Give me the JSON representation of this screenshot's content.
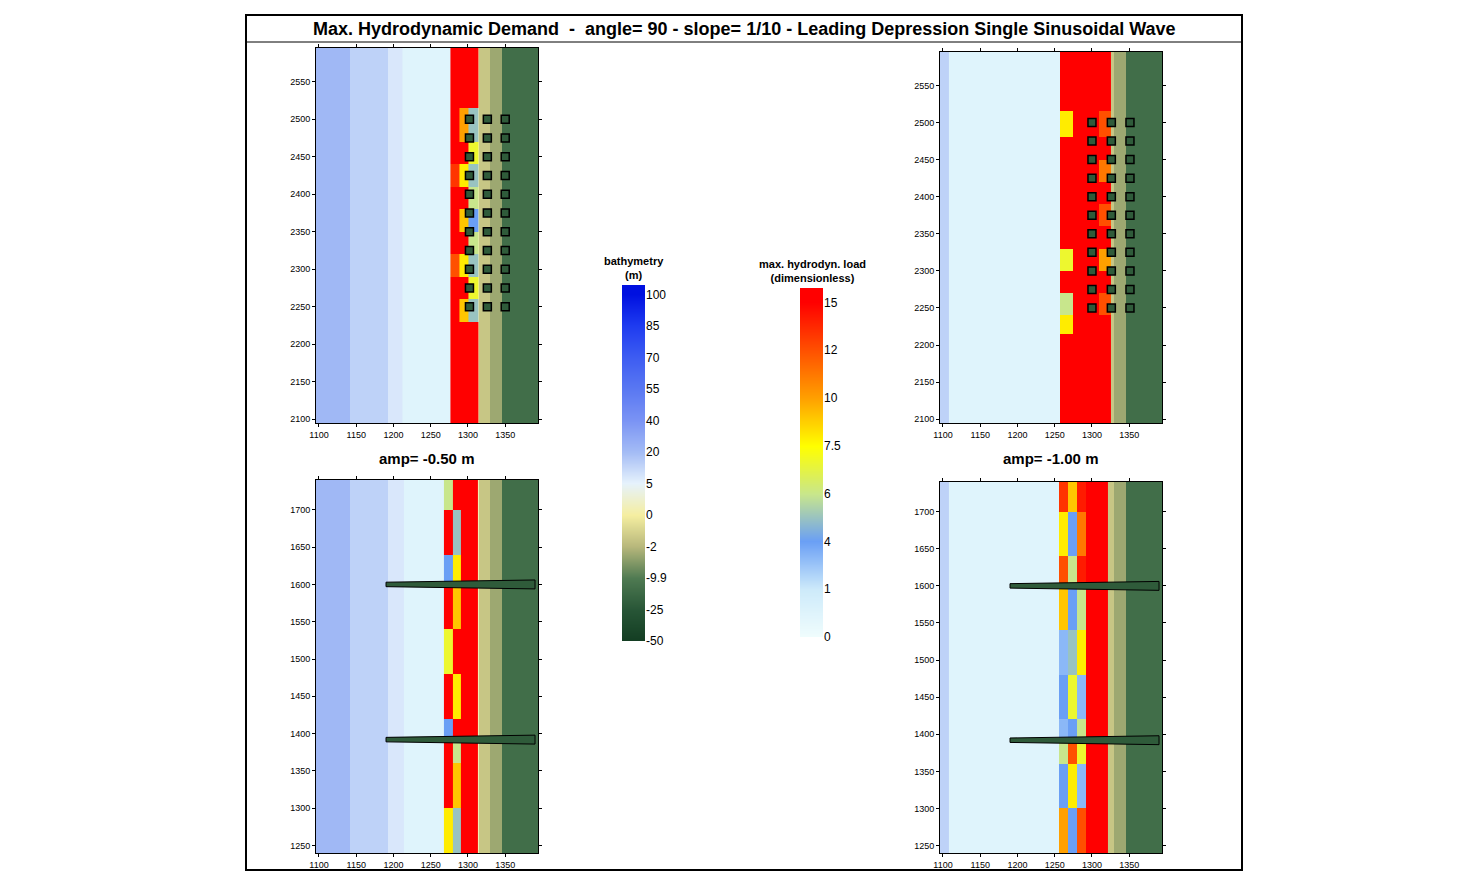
{
  "title": "Max. Hydrodynamic Demand  -  angle= 90 - slope= 1/10 - Leading Depression Single Sinusoidal Wave",
  "column_labels": [
    "amp= -0.50 m",
    "amp= -1.00 m"
  ],
  "bathymetry_colorbar": {
    "title": "bathymetry (m)",
    "ticks": [
      100,
      85,
      70,
      55,
      40,
      20,
      5,
      0,
      -2,
      -9.9,
      -25,
      -50
    ],
    "colors": [
      "#0010e0",
      "#1f3cf0",
      "#3d5cf2",
      "#5a78f2",
      "#7a93f4",
      "#a4bcf5",
      "#e6f2fc",
      "#f5eea0",
      "#b8b87c",
      "#4f7a52",
      "#275536",
      "#133d22"
    ]
  },
  "load_colorbar": {
    "title": "max. hydrodyn. load (dimensionless)",
    "ticks": [
      15,
      12,
      10,
      7.5,
      6,
      4,
      1,
      0
    ],
    "colors": [
      "#ff0000",
      "#ff5000",
      "#ffa000",
      "#ffff00",
      "#c8e68c",
      "#6a9ff5",
      "#cdeafa",
      "#f0fdfd"
    ]
  },
  "chart_data": [
    {
      "type": "heatmap",
      "row": 0,
      "column": 0,
      "xlim": [
        1096,
        1394
      ],
      "ylim": [
        2095,
        2595
      ],
      "xticks": [
        1100,
        1150,
        1200,
        1250,
        1300,
        1350
      ],
      "yticks": [
        2100,
        2150,
        2200,
        2250,
        2300,
        2350,
        2400,
        2450,
        2500,
        2550
      ],
      "bathymetry": {
        "x_edges": [
          1096,
          1142,
          1192,
          1214,
          1276,
          1315,
          1330,
          1345,
          1394
        ],
        "depth": [
          22,
          14,
          8,
          3,
          1,
          -1.5,
          -4,
          -15
        ]
      },
      "load": {
        "x_edges": [
          1212,
          1276,
          1288,
          1300,
          1314
        ],
        "y_edges": [
          2095,
          2230,
          2260,
          2290,
          2320,
          2350,
          2380,
          2410,
          2440,
          2470,
          2515,
          2595
        ],
        "values": [
          [
            0.5,
            15,
            15,
            15
          ],
          [
            0.5,
            15,
            9,
            5
          ],
          [
            0.5,
            15,
            15,
            7
          ],
          [
            0.5,
            12,
            8,
            5
          ],
          [
            0.5,
            15,
            15,
            6
          ],
          [
            0.5,
            15,
            9,
            4
          ],
          [
            0.5,
            15,
            15,
            6
          ],
          [
            0.5,
            13,
            8,
            5
          ],
          [
            0.5,
            15,
            15,
            7
          ],
          [
            0.5,
            15,
            10,
            5
          ],
          [
            0.5,
            15,
            15,
            15
          ]
        ]
      },
      "buildings": {
        "x": [
          1302,
          1326,
          1350
        ],
        "y": [
          2250,
          2275,
          2300,
          2325,
          2350,
          2375,
          2400,
          2425,
          2450,
          2475,
          2500
        ]
      }
    },
    {
      "type": "heatmap",
      "row": 0,
      "column": 1,
      "xlim": [
        1096,
        1394
      ],
      "ylim": [
        2095,
        2595
      ],
      "xticks": [
        1100,
        1150,
        1200,
        1250,
        1300,
        1350
      ],
      "yticks": [
        2100,
        2150,
        2200,
        2250,
        2300,
        2350,
        2400,
        2450,
        2500,
        2550
      ],
      "bathymetry": {
        "x_edges": [
          1096,
          1108,
          1260,
          1315,
          1330,
          1345,
          1394
        ],
        "depth": [
          14,
          3,
          1,
          -1.5,
          -4,
          -15
        ]
      },
      "load": {
        "x_edges": [
          1108,
          1257,
          1275,
          1290,
          1310,
          1325
        ],
        "y_edges": [
          2095,
          2215,
          2240,
          2270,
          2300,
          2330,
          2360,
          2390,
          2420,
          2450,
          2480,
          2515,
          2595
        ],
        "values": [
          [
            0.5,
            15,
            15,
            15,
            15
          ],
          [
            0.5,
            8,
            15,
            15,
            15
          ],
          [
            0.5,
            6,
            15,
            15,
            12
          ],
          [
            0.5,
            15,
            15,
            15,
            15
          ],
          [
            0.5,
            7,
            15,
            15,
            10
          ],
          [
            0.5,
            15,
            15,
            15,
            15
          ],
          [
            0.5,
            15,
            15,
            15,
            12
          ],
          [
            0.5,
            15,
            15,
            15,
            15
          ],
          [
            0.5,
            15,
            15,
            15,
            11
          ],
          [
            0.5,
            15,
            15,
            15,
            15
          ],
          [
            0.5,
            8,
            15,
            15,
            12
          ],
          [
            0.5,
            15,
            15,
            15,
            15
          ]
        ]
      },
      "buildings": {
        "x": [
          1300,
          1326,
          1351
        ],
        "y": [
          2250,
          2275,
          2300,
          2325,
          2350,
          2375,
          2400,
          2425,
          2450,
          2475,
          2500
        ]
      }
    },
    {
      "type": "heatmap",
      "row": 1,
      "column": 0,
      "xlim": [
        1096,
        1394
      ],
      "ylim": [
        1240,
        1740
      ],
      "xticks": [
        1100,
        1150,
        1200,
        1250,
        1300,
        1350
      ],
      "yticks": [
        1250,
        1300,
        1350,
        1400,
        1450,
        1500,
        1550,
        1600,
        1650,
        1700
      ],
      "bathymetry": {
        "x_edges": [
          1096,
          1142,
          1192,
          1214,
          1276,
          1315,
          1330,
          1345,
          1394
        ],
        "depth": [
          22,
          14,
          8,
          3,
          1,
          -1.5,
          -4,
          -15
        ]
      },
      "load": {
        "x_edges": [
          1214,
          1268,
          1280,
          1290,
          1314
        ],
        "y_edges": [
          1240,
          1300,
          1360,
          1392,
          1420,
          1480,
          1540,
          1600,
          1640,
          1700,
          1740
        ],
        "values": [
          [
            0.5,
            8,
            5,
            15
          ],
          [
            0.5,
            15,
            9,
            15
          ],
          [
            0.5,
            15,
            6,
            15
          ],
          [
            0.5,
            4,
            15,
            15
          ],
          [
            0.5,
            15,
            8,
            15
          ],
          [
            0.5,
            7,
            15,
            15
          ],
          [
            0.5,
            15,
            9,
            15
          ],
          [
            0.5,
            4,
            8,
            15
          ],
          [
            0.5,
            15,
            5,
            15
          ],
          [
            0.5,
            6,
            15,
            15
          ]
        ]
      },
      "groins": [
        {
          "y": 1392,
          "x": [
            1190,
            1390
          ]
        },
        {
          "y": 1600,
          "x": [
            1190,
            1390
          ]
        }
      ]
    },
    {
      "type": "heatmap",
      "row": 1,
      "column": 1,
      "xlim": [
        1096,
        1394
      ],
      "ylim": [
        1240,
        1740
      ],
      "xticks": [
        1100,
        1150,
        1200,
        1250,
        1300,
        1350
      ],
      "yticks": [
        1250,
        1300,
        1350,
        1400,
        1450,
        1500,
        1550,
        1600,
        1650,
        1700
      ],
      "bathymetry": {
        "x_edges": [
          1096,
          1108,
          1260,
          1315,
          1330,
          1345,
          1394
        ],
        "depth": [
          14,
          3,
          1,
          -1.5,
          -4,
          -15
        ]
      },
      "load": {
        "x_edges": [
          1108,
          1255,
          1268,
          1280,
          1292,
          1322
        ],
        "y_edges": [
          1240,
          1300,
          1360,
          1392,
          1420,
          1480,
          1540,
          1600,
          1640,
          1700,
          1740
        ],
        "values": [
          [
            0.5,
            10,
            4,
            12,
            15
          ],
          [
            0.5,
            4,
            8,
            3,
            15
          ],
          [
            0.5,
            6,
            12,
            7,
            15
          ],
          [
            0.5,
            3,
            4,
            6,
            15
          ],
          [
            0.5,
            4,
            7,
            3,
            15
          ],
          [
            0.5,
            3,
            5,
            8,
            15
          ],
          [
            0.5,
            9,
            4,
            6,
            15
          ],
          [
            0.5,
            12,
            6,
            14,
            15
          ],
          [
            0.5,
            8,
            4,
            11,
            15
          ],
          [
            0.5,
            13,
            9,
            14,
            15
          ]
        ]
      },
      "groins": [
        {
          "y": 1392,
          "x": [
            1190,
            1390
          ]
        },
        {
          "y": 1600,
          "x": [
            1190,
            1390
          ]
        }
      ]
    }
  ]
}
